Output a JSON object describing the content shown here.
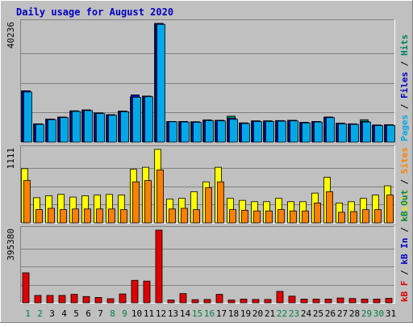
{
  "chart_data": [
    {
      "type": "bar",
      "title": "Daily usage for August 2020",
      "categories": [
        "1",
        "2",
        "3",
        "4",
        "5",
        "6",
        "7",
        "8",
        "9",
        "10",
        "11",
        "12",
        "13",
        "14",
        "15",
        "16",
        "17",
        "18",
        "19",
        "20",
        "21",
        "22",
        "23",
        "24",
        "25",
        "26",
        "27",
        "28",
        "29",
        "30",
        "31"
      ],
      "weekend_days": [
        "1",
        "2",
        "8",
        "9",
        "15",
        "16",
        "22",
        "23",
        "29",
        "30"
      ],
      "ymax_label": "40236",
      "ylim": [
        0,
        40236
      ],
      "right_label": [
        {
          "text": "Pages",
          "color": "#00a8e8"
        },
        {
          "text": " / ",
          "color": "#000000"
        },
        {
          "text": "Files",
          "color": "#0000c0"
        },
        {
          "text": " / ",
          "color": "#000000"
        },
        {
          "text": "Hits",
          "color": "#008060"
        }
      ],
      "series": [
        {
          "name": "Hits",
          "color": "#008060",
          "values": [
            17400,
            6200,
            7800,
            8500,
            10600,
            10900,
            9900,
            9300,
            10500,
            15300,
            15600,
            40236,
            7000,
            7000,
            6900,
            7500,
            7400,
            8800,
            6500,
            7200,
            7200,
            7300,
            7400,
            6700,
            7000,
            8500,
            6400,
            6200,
            7600,
            5800,
            5900
          ]
        },
        {
          "name": "Files",
          "color": "#0000c0",
          "values": [
            17400,
            6200,
            7800,
            8500,
            10600,
            10900,
            9900,
            9300,
            10500,
            16000,
            15600,
            40236,
            7000,
            7000,
            6900,
            7500,
            7400,
            8100,
            6500,
            7200,
            7200,
            7300,
            7400,
            6700,
            7000,
            8500,
            6400,
            6200,
            7000,
            5800,
            5900
          ]
        },
        {
          "name": "Pages",
          "color": "#00a8e8",
          "values": [
            17000,
            6000,
            7600,
            8300,
            10400,
            10700,
            9700,
            9100,
            10300,
            15200,
            15400,
            39900,
            6900,
            6800,
            6700,
            7300,
            7200,
            7700,
            6300,
            7000,
            7000,
            7100,
            7200,
            6500,
            6800,
            8300,
            6200,
            6000,
            6800,
            5600,
            5700
          ]
        }
      ]
    },
    {
      "type": "bar",
      "ymax_label": "1111",
      "ylim": [
        0,
        1111
      ],
      "right_label": [
        {
          "text": "Visits",
          "color": "#e8e800"
        },
        {
          "text": " / ",
          "color": "#000000"
        },
        {
          "text": "Sites",
          "color": "#ff8000"
        }
      ],
      "series": [
        {
          "name": "Visits",
          "color": "#ffff00",
          "values": [
            820,
            380,
            410,
            430,
            390,
            410,
            420,
            430,
            420,
            810,
            840,
            1111,
            360,
            370,
            470,
            620,
            840,
            370,
            340,
            320,
            320,
            370,
            320,
            320,
            450,
            690,
            300,
            320,
            370,
            420,
            560
          ]
        },
        {
          "name": "Sites",
          "color": "#ff8000",
          "values": [
            640,
            200,
            220,
            200,
            210,
            210,
            210,
            210,
            200,
            620,
            640,
            800,
            210,
            220,
            200,
            530,
            620,
            200,
            190,
            180,
            180,
            200,
            180,
            180,
            300,
            470,
            160,
            170,
            200,
            200,
            420
          ]
        }
      ]
    },
    {
      "type": "bar",
      "ymax_label": "395380",
      "ylim": [
        0,
        395380
      ],
      "right_label": [
        {
          "text": "kB F",
          "color": "#e00000"
        },
        {
          "text": " / ",
          "color": "#000000"
        },
        {
          "text": "kB In",
          "color": "#0000c0"
        },
        {
          "text": " / ",
          "color": "#000000"
        },
        {
          "text": "kB Out",
          "color": "#008060"
        }
      ],
      "series": [
        {
          "name": "kB F",
          "color": "#e00000",
          "values": [
            163000,
            40000,
            40000,
            40000,
            46000,
            34000,
            29000,
            22000,
            48000,
            122000,
            118000,
            395380,
            15000,
            50000,
            17000,
            18000,
            46000,
            15000,
            20000,
            18000,
            18000,
            62000,
            36000,
            20000,
            20000,
            20000,
            26000,
            23000,
            20000,
            20000,
            24000
          ]
        }
      ]
    }
  ]
}
